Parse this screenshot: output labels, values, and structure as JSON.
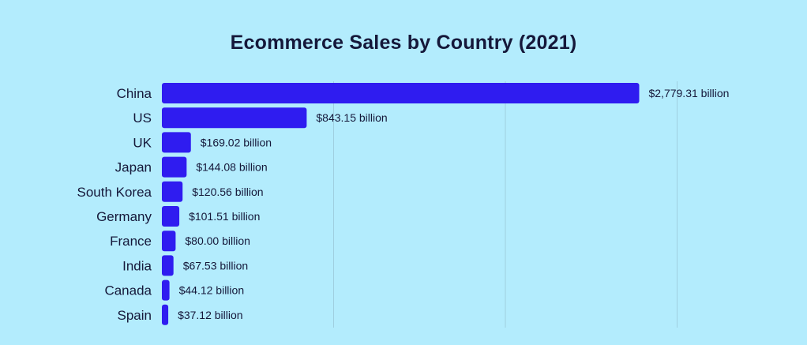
{
  "chart_data": {
    "type": "bar",
    "orientation": "horizontal",
    "title": "Ecommerce Sales by Country (2021)",
    "xlabel": "",
    "ylabel": "",
    "categories": [
      "China",
      "US",
      "UK",
      "Japan",
      "South Korea",
      "Germany",
      "France",
      "India",
      "Canada",
      "Spain"
    ],
    "values": [
      2779.31,
      843.15,
      169.02,
      144.08,
      120.56,
      101.51,
      80.0,
      67.53,
      44.12,
      37.12
    ],
    "value_labels": [
      "$2,779.31 billion",
      "$843.15 billion",
      "$169.02 billion",
      "$144.08 billion",
      "$120.56 billion",
      "$101.51 billion",
      "$80.00 billion",
      "$67.53 billion",
      "$44.12 billion",
      "$37.12 billion"
    ],
    "xlim": [
      0,
      3000
    ],
    "grid": true,
    "legend": "none",
    "colors": {
      "bar": "#2f1cf0",
      "background": "#b3ecfd",
      "grid": "#9fcfe0",
      "text": "#15183a"
    }
  }
}
